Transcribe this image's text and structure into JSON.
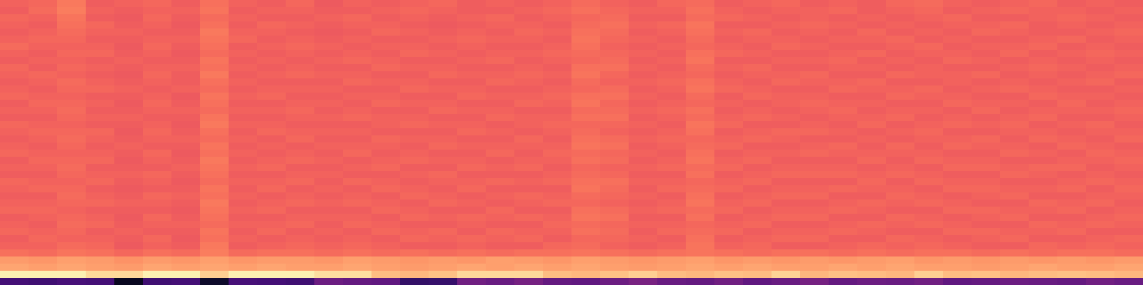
{
  "chart_data": {
    "type": "heatmap",
    "tick_labels": false,
    "zlim": [
      0,
      100
    ],
    "cells": [
      [
        67,
        68,
        72,
        66,
        67,
        68,
        66,
        70,
        67,
        66,
        68,
        65,
        67,
        66,
        67,
        68,
        66,
        67,
        66,
        67,
        69,
        67,
        66,
        68,
        69,
        66,
        67,
        68,
        66,
        67,
        66,
        68,
        69,
        67,
        66,
        67,
        68,
        66,
        67,
        66
      ],
      [
        66,
        69,
        73,
        67,
        66,
        67,
        67,
        71,
        66,
        67,
        67,
        66,
        66,
        67,
        68,
        67,
        66,
        66,
        67,
        68,
        70,
        68,
        67,
        67,
        70,
        67,
        66,
        67,
        67,
        68,
        66,
        67,
        68,
        66,
        67,
        68,
        67,
        67,
        66,
        67
      ],
      [
        68,
        67,
        71,
        66,
        65,
        68,
        66,
        69,
        67,
        66,
        66,
        67,
        68,
        66,
        67,
        66,
        67,
        68,
        66,
        67,
        68,
        69,
        66,
        66,
        69,
        68,
        67,
        66,
        67,
        66,
        67,
        66,
        67,
        68,
        66,
        66,
        67,
        68,
        67,
        66
      ],
      [
        67,
        66,
        70,
        68,
        66,
        67,
        65,
        70,
        66,
        68,
        67,
        66,
        67,
        67,
        66,
        65,
        66,
        67,
        67,
        66,
        69,
        70,
        67,
        68,
        71,
        66,
        66,
        67,
        68,
        67,
        66,
        67,
        66,
        67,
        67,
        68,
        66,
        67,
        66,
        67
      ],
      [
        66,
        67,
        69,
        67,
        67,
        66,
        66,
        72,
        67,
        67,
        66,
        65,
        66,
        68,
        67,
        66,
        67,
        66,
        68,
        67,
        70,
        69,
        66,
        67,
        70,
        67,
        68,
        66,
        67,
        66,
        68,
        66,
        67,
        66,
        68,
        67,
        66,
        66,
        67,
        68
      ],
      [
        67,
        68,
        68,
        66,
        66,
        67,
        67,
        71,
        68,
        66,
        67,
        66,
        67,
        66,
        66,
        67,
        68,
        67,
        67,
        66,
        71,
        68,
        67,
        66,
        69,
        66,
        67,
        67,
        66,
        67,
        67,
        68,
        66,
        67,
        66,
        66,
        67,
        68,
        66,
        67
      ],
      [
        69,
        67,
        67,
        67,
        65,
        68,
        66,
        70,
        66,
        67,
        68,
        67,
        66,
        67,
        67,
        66,
        67,
        66,
        66,
        67,
        70,
        67,
        66,
        67,
        68,
        67,
        66,
        68,
        67,
        66,
        66,
        67,
        68,
        66,
        67,
        67,
        68,
        66,
        67,
        66
      ],
      [
        67,
        66,
        68,
        68,
        66,
        67,
        65,
        69,
        67,
        66,
        67,
        66,
        67,
        66,
        68,
        67,
        66,
        67,
        67,
        68,
        69,
        68,
        67,
        66,
        70,
        68,
        67,
        66,
        66,
        67,
        68,
        66,
        67,
        67,
        66,
        68,
        66,
        67,
        68,
        67
      ],
      [
        66,
        67,
        67,
        66,
        67,
        66,
        66,
        71,
        66,
        67,
        66,
        67,
        68,
        67,
        66,
        66,
        67,
        68,
        66,
        67,
        68,
        69,
        66,
        67,
        71,
        66,
        66,
        67,
        67,
        68,
        66,
        67,
        66,
        68,
        67,
        66,
        67,
        66,
        67,
        66
      ],
      [
        68,
        66,
        68,
        67,
        66,
        67,
        67,
        70,
        67,
        66,
        67,
        66,
        66,
        68,
        67,
        67,
        66,
        66,
        67,
        66,
        70,
        70,
        67,
        66,
        69,
        67,
        68,
        66,
        66,
        67,
        67,
        66,
        67,
        66,
        66,
        67,
        68,
        67,
        66,
        67
      ],
      [
        67,
        68,
        67,
        66,
        65,
        68,
        66,
        72,
        66,
        67,
        68,
        67,
        67,
        66,
        66,
        68,
        67,
        67,
        68,
        67,
        71,
        68,
        66,
        67,
        68,
        66,
        67,
        67,
        68,
        66,
        66,
        68,
        67,
        67,
        68,
        66,
        67,
        66,
        67,
        68
      ],
      [
        66,
        67,
        69,
        67,
        66,
        67,
        66,
        70,
        67,
        66,
        66,
        66,
        68,
        67,
        67,
        66,
        66,
        68,
        67,
        66,
        69,
        67,
        67,
        68,
        70,
        67,
        66,
        68,
        67,
        67,
        68,
        66,
        66,
        67,
        66,
        67,
        66,
        67,
        68,
        66
      ],
      [
        67,
        66,
        68,
        68,
        67,
        66,
        67,
        69,
        66,
        67,
        67,
        67,
        66,
        66,
        68,
        67,
        67,
        66,
        66,
        67,
        68,
        69,
        66,
        67,
        71,
        68,
        67,
        66,
        66,
        68,
        67,
        67,
        68,
        66,
        67,
        68,
        67,
        66,
        66,
        67
      ],
      [
        68,
        67,
        67,
        66,
        66,
        67,
        65,
        71,
        67,
        68,
        66,
        66,
        67,
        67,
        66,
        66,
        68,
        67,
        67,
        68,
        70,
        70,
        67,
        66,
        69,
        66,
        68,
        67,
        67,
        66,
        66,
        68,
        67,
        67,
        66,
        66,
        68,
        67,
        67,
        66
      ],
      [
        66,
        68,
        68,
        67,
        65,
        68,
        66,
        70,
        66,
        66,
        67,
        67,
        66,
        68,
        67,
        67,
        66,
        66,
        68,
        67,
        71,
        68,
        66,
        67,
        68,
        67,
        66,
        67,
        68,
        67,
        67,
        66,
        66,
        68,
        67,
        67,
        66,
        68,
        66,
        67
      ],
      [
        67,
        67,
        69,
        66,
        66,
        67,
        67,
        69,
        67,
        67,
        68,
        66,
        67,
        66,
        66,
        68,
        67,
        67,
        66,
        66,
        69,
        69,
        67,
        68,
        70,
        66,
        67,
        66,
        67,
        68,
        66,
        67,
        67,
        66,
        68,
        66,
        67,
        67,
        67,
        68
      ],
      [
        66,
        66,
        68,
        67,
        67,
        66,
        66,
        71,
        66,
        66,
        67,
        67,
        68,
        67,
        67,
        66,
        66,
        68,
        67,
        67,
        70,
        70,
        66,
        67,
        69,
        67,
        68,
        67,
        66,
        67,
        67,
        68,
        66,
        67,
        66,
        67,
        68,
        66,
        66,
        67
      ],
      [
        68,
        67,
        67,
        66,
        66,
        67,
        65,
        72,
        67,
        67,
        66,
        66,
        66,
        67,
        68,
        67,
        67,
        66,
        67,
        68,
        68,
        68,
        67,
        66,
        71,
        68,
        66,
        66,
        67,
        66,
        68,
        66,
        67,
        68,
        67,
        68,
        66,
        67,
        68,
        66
      ],
      [
        67,
        68,
        68,
        68,
        65,
        68,
        66,
        70,
        66,
        68,
        67,
        67,
        67,
        66,
        66,
        66,
        68,
        67,
        66,
        67,
        69,
        67,
        66,
        67,
        70,
        66,
        67,
        68,
        68,
        67,
        66,
        67,
        68,
        66,
        66,
        67,
        67,
        66,
        67,
        67
      ],
      [
        66,
        67,
        69,
        67,
        66,
        67,
        67,
        69,
        67,
        66,
        68,
        66,
        66,
        68,
        67,
        67,
        66,
        66,
        68,
        66,
        70,
        69,
        67,
        68,
        68,
        67,
        68,
        67,
        66,
        66,
        67,
        66,
        67,
        67,
        68,
        66,
        68,
        67,
        66,
        68
      ],
      [
        67,
        66,
        68,
        66,
        67,
        66,
        66,
        71,
        66,
        67,
        66,
        67,
        67,
        67,
        66,
        68,
        67,
        67,
        67,
        67,
        71,
        70,
        66,
        67,
        69,
        68,
        66,
        66,
        67,
        68,
        66,
        68,
        66,
        68,
        67,
        67,
        66,
        68,
        67,
        66
      ],
      [
        68,
        67,
        67,
        67,
        66,
        68,
        65,
        70,
        67,
        66,
        67,
        66,
        68,
        66,
        67,
        66,
        66,
        68,
        66,
        68,
        69,
        68,
        67,
        66,
        70,
        66,
        67,
        67,
        68,
        67,
        67,
        67,
        67,
        66,
        66,
        68,
        67,
        66,
        68,
        67
      ],
      [
        66,
        68,
        68,
        68,
        65,
        67,
        66,
        72,
        66,
        67,
        68,
        67,
        66,
        67,
        68,
        67,
        67,
        66,
        67,
        67,
        70,
        69,
        66,
        67,
        71,
        67,
        68,
        66,
        66,
        66,
        68,
        66,
        68,
        67,
        67,
        66,
        66,
        67,
        67,
        68
      ],
      [
        67,
        67,
        69,
        66,
        66,
        66,
        67,
        71,
        67,
        68,
        66,
        66,
        67,
        68,
        66,
        66,
        68,
        67,
        68,
        66,
        68,
        67,
        67,
        68,
        69,
        68,
        66,
        67,
        67,
        67,
        66,
        67,
        66,
        68,
        68,
        67,
        68,
        68,
        66,
        67
      ],
      [
        66,
        66,
        68,
        67,
        67,
        68,
        66,
        70,
        66,
        66,
        67,
        67,
        66,
        66,
        67,
        68,
        66,
        66,
        66,
        67,
        69,
        68,
        66,
        66,
        70,
        66,
        67,
        68,
        68,
        68,
        67,
        68,
        67,
        66,
        66,
        68,
        67,
        66,
        67,
        66
      ],
      [
        68,
        67,
        67,
        68,
        66,
        67,
        65,
        69,
        67,
        67,
        68,
        66,
        68,
        67,
        66,
        67,
        67,
        68,
        67,
        68,
        70,
        70,
        67,
        67,
        68,
        67,
        68,
        66,
        66,
        66,
        68,
        66,
        68,
        67,
        67,
        66,
        66,
        67,
        68,
        67
      ],
      [
        67,
        68,
        68,
        66,
        65,
        66,
        66,
        71,
        66,
        68,
        66,
        67,
        66,
        68,
        67,
        66,
        68,
        66,
        66,
        66,
        71,
        69,
        66,
        68,
        69,
        68,
        66,
        67,
        67,
        68,
        67,
        67,
        66,
        68,
        68,
        67,
        67,
        68,
        66,
        68
      ],
      [
        66,
        66,
        69,
        67,
        66,
        68,
        67,
        70,
        67,
        66,
        67,
        66,
        67,
        66,
        68,
        67,
        66,
        67,
        68,
        67,
        69,
        68,
        67,
        66,
        70,
        66,
        67,
        68,
        68,
        66,
        66,
        68,
        67,
        66,
        67,
        68,
        66,
        66,
        67,
        67
      ],
      [
        67,
        67,
        68,
        68,
        67,
        67,
        66,
        72,
        66,
        67,
        68,
        67,
        68,
        67,
        66,
        68,
        67,
        66,
        67,
        68,
        68,
        67,
        66,
        67,
        71,
        67,
        68,
        66,
        66,
        67,
        68,
        67,
        68,
        67,
        66,
        66,
        68,
        67,
        68,
        66
      ],
      [
        68,
        68,
        67,
        66,
        66,
        66,
        65,
        71,
        67,
        68,
        66,
        66,
        66,
        68,
        67,
        66,
        66,
        68,
        66,
        66,
        70,
        69,
        67,
        68,
        69,
        68,
        66,
        67,
        67,
        68,
        67,
        66,
        66,
        68,
        68,
        67,
        67,
        68,
        66,
        67
      ],
      [
        66,
        67,
        68,
        67,
        65,
        68,
        66,
        70,
        66,
        66,
        67,
        67,
        67,
        66,
        68,
        67,
        68,
        67,
        68,
        67,
        71,
        70,
        66,
        66,
        70,
        66,
        67,
        68,
        68,
        66,
        66,
        68,
        67,
        66,
        67,
        68,
        66,
        66,
        67,
        68
      ],
      [
        67,
        66,
        69,
        68,
        66,
        67,
        67,
        69,
        67,
        67,
        68,
        66,
        68,
        67,
        66,
        66,
        67,
        66,
        66,
        68,
        69,
        68,
        67,
        67,
        68,
        67,
        68,
        66,
        66,
        67,
        68,
        67,
        68,
        67,
        66,
        66,
        68,
        67,
        68,
        67
      ],
      [
        68,
        67,
        68,
        66,
        67,
        66,
        66,
        71,
        66,
        68,
        66,
        67,
        66,
        68,
        67,
        68,
        66,
        68,
        67,
        67,
        70,
        69,
        66,
        68,
        69,
        68,
        66,
        67,
        67,
        68,
        67,
        66,
        66,
        68,
        68,
        67,
        67,
        68,
        66,
        66
      ],
      [
        66,
        68,
        67,
        67,
        66,
        68,
        65,
        70,
        67,
        66,
        67,
        66,
        67,
        66,
        68,
        67,
        68,
        67,
        68,
        66,
        68,
        68,
        67,
        66,
        70,
        66,
        67,
        68,
        68,
        66,
        66,
        68,
        67,
        66,
        67,
        68,
        66,
        66,
        67,
        68
      ],
      [
        67,
        67,
        69,
        68,
        65,
        67,
        66,
        72,
        66,
        67,
        68,
        67,
        68,
        67,
        66,
        66,
        67,
        66,
        66,
        68,
        69,
        67,
        66,
        67,
        71,
        67,
        68,
        66,
        66,
        67,
        68,
        67,
        68,
        67,
        66,
        66,
        68,
        67,
        68,
        67
      ],
      [
        70,
        69,
        71,
        70,
        68,
        70,
        69,
        73,
        69,
        70,
        70,
        69,
        70,
        69,
        70,
        69,
        70,
        69,
        70,
        70,
        71,
        70,
        69,
        70,
        71,
        70,
        69,
        70,
        70,
        69,
        70,
        69,
        70,
        70,
        69,
        70,
        69,
        70,
        70,
        69
      ],
      [
        79,
        78,
        80,
        79,
        77,
        79,
        78,
        80,
        78,
        79,
        79,
        78,
        80,
        79,
        78,
        79,
        78,
        80,
        79,
        78,
        80,
        79,
        78,
        79,
        80,
        78,
        79,
        78,
        79,
        78,
        79,
        80,
        78,
        79,
        78,
        79,
        78,
        79,
        78,
        79
      ],
      [
        81,
        80,
        81,
        80,
        79,
        81,
        80,
        81,
        80,
        81,
        80,
        80,
        81,
        80,
        79,
        80,
        81,
        80,
        81,
        80,
        81,
        80,
        79,
        80,
        81,
        80,
        81,
        80,
        80,
        81,
        80,
        81,
        80,
        80,
        79,
        80,
        81,
        80,
        80,
        81
      ],
      [
        97,
        97,
        97,
        92,
        92,
        97,
        97,
        90,
        97,
        97,
        97,
        93,
        93,
        86,
        85,
        87,
        92,
        92,
        92,
        86,
        85,
        87,
        90,
        86,
        85,
        87,
        86,
        91,
        85,
        87,
        86,
        85,
        90,
        86,
        87,
        85,
        86,
        87,
        86,
        85
      ],
      [
        22,
        21,
        23,
        22,
        6,
        21,
        22,
        8,
        23,
        22,
        21,
        32,
        30,
        29,
        18,
        19,
        33,
        31,
        34,
        30,
        29,
        32,
        35,
        31,
        30,
        33,
        29,
        31,
        34,
        30,
        32,
        31,
        33,
        29,
        30,
        32,
        31,
        30,
        33,
        31
      ]
    ]
  }
}
